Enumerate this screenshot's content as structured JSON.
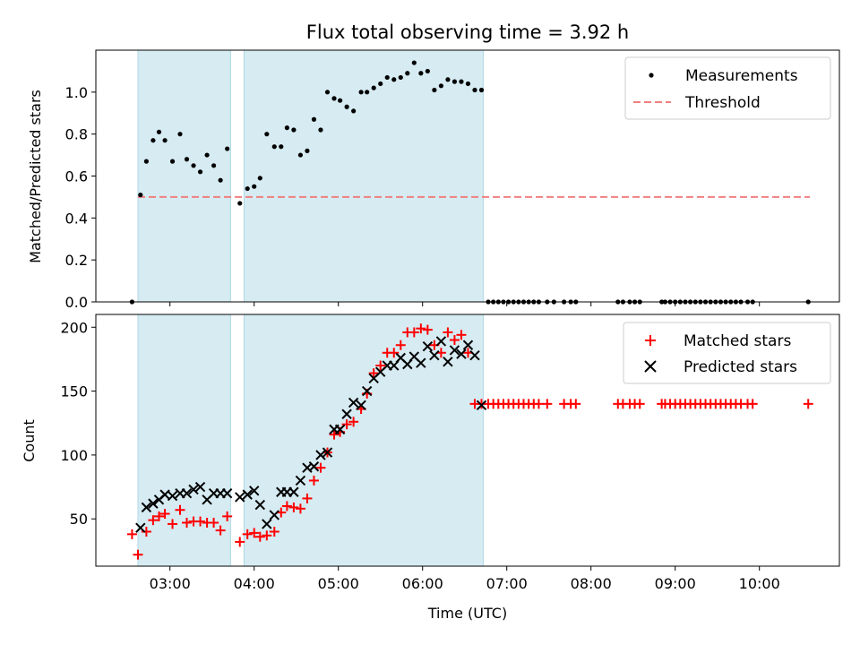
{
  "chart_data": [
    {
      "type": "scatter",
      "title": "Flux total observing time = 3.92 h",
      "xlabel": "",
      "ylabel": "Matched/Predicted stars",
      "xlim": [
        2.12,
        10.95
      ],
      "ylim": [
        0,
        1.2
      ],
      "x_tick_values": [
        3,
        4,
        5,
        6,
        7,
        8,
        9,
        10
      ],
      "y_ticks": [
        "0.0",
        "0.2",
        "0.4",
        "0.6",
        "0.8",
        "1.0"
      ],
      "y_tick_values": [
        0,
        0.2,
        0.4,
        0.6,
        0.8,
        1.0
      ],
      "shaded_spans": [
        [
          2.62,
          3.72
        ],
        [
          3.88,
          6.72
        ]
      ],
      "span_color": "#add8e6",
      "legend_position": "upper right",
      "legend": [
        {
          "label": "Measurements",
          "marker": "dot",
          "color": "#000000"
        },
        {
          "label": "Threshold",
          "marker": "dashed-line",
          "color": "#f08080"
        }
      ],
      "threshold": {
        "x": [
          2.62,
          10.6
        ],
        "y": 0.5,
        "color": "#f08080"
      },
      "series": [
        {
          "name": "Measurements",
          "color": "#000000",
          "points": [
            [
              2.55,
              0.0
            ],
            [
              2.65,
              0.51
            ],
            [
              2.72,
              0.67
            ],
            [
              2.8,
              0.77
            ],
            [
              2.87,
              0.81
            ],
            [
              2.94,
              0.77
            ],
            [
              3.03,
              0.67
            ],
            [
              3.12,
              0.8
            ],
            [
              3.2,
              0.68
            ],
            [
              3.28,
              0.65
            ],
            [
              3.36,
              0.62
            ],
            [
              3.44,
              0.7
            ],
            [
              3.52,
              0.65
            ],
            [
              3.6,
              0.58
            ],
            [
              3.68,
              0.73
            ],
            [
              3.83,
              0.47
            ],
            [
              3.92,
              0.54
            ],
            [
              4.0,
              0.55
            ],
            [
              4.07,
              0.59
            ],
            [
              4.15,
              0.8
            ],
            [
              4.24,
              0.74
            ],
            [
              4.32,
              0.74
            ],
            [
              4.39,
              0.83
            ],
            [
              4.47,
              0.82
            ],
            [
              4.55,
              0.7
            ],
            [
              4.63,
              0.72
            ],
            [
              4.71,
              0.87
            ],
            [
              4.79,
              0.82
            ],
            [
              4.87,
              1.0
            ],
            [
              4.95,
              0.97
            ],
            [
              5.02,
              0.96
            ],
            [
              5.1,
              0.93
            ],
            [
              5.18,
              0.91
            ],
            [
              5.27,
              1.0
            ],
            [
              5.34,
              1.0
            ],
            [
              5.42,
              1.02
            ],
            [
              5.5,
              1.04
            ],
            [
              5.58,
              1.07
            ],
            [
              5.66,
              1.06
            ],
            [
              5.74,
              1.07
            ],
            [
              5.82,
              1.09
            ],
            [
              5.9,
              1.14
            ],
            [
              5.98,
              1.09
            ],
            [
              6.06,
              1.1
            ],
            [
              6.14,
              1.01
            ],
            [
              6.22,
              1.03
            ],
            [
              6.3,
              1.06
            ],
            [
              6.38,
              1.05
            ],
            [
              6.46,
              1.05
            ],
            [
              6.54,
              1.04
            ],
            [
              6.62,
              1.01
            ],
            [
              6.7,
              1.01
            ],
            [
              6.78,
              0.0
            ],
            [
              6.84,
              0.0
            ],
            [
              6.9,
              0.0
            ],
            [
              6.96,
              0.0
            ],
            [
              7.02,
              0.0
            ],
            [
              7.08,
              0.0
            ],
            [
              7.14,
              0.0
            ],
            [
              7.2,
              0.0
            ],
            [
              7.26,
              0.0
            ],
            [
              7.32,
              0.0
            ],
            [
              7.38,
              0.0
            ],
            [
              7.48,
              0.0
            ],
            [
              7.56,
              0.0
            ],
            [
              7.68,
              0.0
            ],
            [
              7.76,
              0.0
            ],
            [
              7.82,
              0.0
            ],
            [
              8.32,
              0.0
            ],
            [
              8.38,
              0.0
            ],
            [
              8.46,
              0.0
            ],
            [
              8.52,
              0.0
            ],
            [
              8.58,
              0.0
            ],
            [
              8.84,
              0.0
            ],
            [
              8.88,
              0.0
            ],
            [
              8.94,
              0.0
            ],
            [
              9.0,
              0.0
            ],
            [
              9.06,
              0.0
            ],
            [
              9.12,
              0.0
            ],
            [
              9.18,
              0.0
            ],
            [
              9.24,
              0.0
            ],
            [
              9.3,
              0.0
            ],
            [
              9.36,
              0.0
            ],
            [
              9.42,
              0.0
            ],
            [
              9.48,
              0.0
            ],
            [
              9.54,
              0.0
            ],
            [
              9.6,
              0.0
            ],
            [
              9.66,
              0.0
            ],
            [
              9.72,
              0.0
            ],
            [
              9.78,
              0.0
            ],
            [
              9.86,
              0.0
            ],
            [
              9.92,
              0.0
            ],
            [
              10.58,
              0.0
            ]
          ]
        }
      ]
    },
    {
      "type": "scatter",
      "title": "",
      "xlabel": "Time (UTC)",
      "ylabel": "Count",
      "xlim": [
        2.12,
        10.95
      ],
      "ylim": [
        13,
        210
      ],
      "x_ticks": [
        "03:00",
        "04:00",
        "05:00",
        "06:00",
        "07:00",
        "08:00",
        "09:00",
        "10:00"
      ],
      "x_tick_values": [
        3,
        4,
        5,
        6,
        7,
        8,
        9,
        10
      ],
      "y_ticks": [
        "50",
        "100",
        "150",
        "200"
      ],
      "y_tick_values": [
        50,
        100,
        150,
        200
      ],
      "shaded_spans": [
        [
          2.62,
          3.72
        ],
        [
          3.88,
          6.72
        ]
      ],
      "span_color": "#add8e6",
      "legend_position": "upper right",
      "legend": [
        {
          "label": "Matched stars",
          "marker": "plus",
          "color": "#ff0000"
        },
        {
          "label": "Predicted stars",
          "marker": "x",
          "color": "#000000"
        }
      ],
      "series": [
        {
          "name": "Matched stars",
          "color": "#ff0000",
          "marker": "plus",
          "points": [
            [
              2.55,
              38
            ],
            [
              2.62,
              22
            ],
            [
              2.72,
              40
            ],
            [
              2.8,
              49
            ],
            [
              2.87,
              52
            ],
            [
              2.94,
              54
            ],
            [
              3.03,
              46
            ],
            [
              3.12,
              57
            ],
            [
              3.2,
              47
            ],
            [
              3.28,
              48
            ],
            [
              3.36,
              48
            ],
            [
              3.44,
              47
            ],
            [
              3.52,
              47
            ],
            [
              3.6,
              41
            ],
            [
              3.68,
              52
            ],
            [
              3.83,
              32
            ],
            [
              3.92,
              38
            ],
            [
              4.0,
              39
            ],
            [
              4.07,
              36
            ],
            [
              4.15,
              37
            ],
            [
              4.24,
              40
            ],
            [
              4.32,
              55
            ],
            [
              4.39,
              60
            ],
            [
              4.47,
              59
            ],
            [
              4.55,
              58
            ],
            [
              4.63,
              66
            ],
            [
              4.71,
              80
            ],
            [
              4.79,
              90
            ],
            [
              4.87,
              102
            ],
            [
              4.95,
              116
            ],
            [
              5.02,
              118
            ],
            [
              5.1,
              124
            ],
            [
              5.18,
              126
            ],
            [
              5.27,
              136
            ],
            [
              5.34,
              148
            ],
            [
              5.42,
              164
            ],
            [
              5.5,
              170
            ],
            [
              5.58,
              180
            ],
            [
              5.66,
              180
            ],
            [
              5.74,
              186
            ],
            [
              5.82,
              196
            ],
            [
              5.9,
              196
            ],
            [
              5.98,
              199
            ],
            [
              6.06,
              198
            ],
            [
              6.14,
              186
            ],
            [
              6.22,
              180
            ],
            [
              6.3,
              196
            ],
            [
              6.38,
              190
            ],
            [
              6.46,
              194
            ],
            [
              6.54,
              180
            ],
            [
              6.62,
              140
            ],
            [
              6.7,
              140
            ],
            [
              6.78,
              140
            ],
            [
              6.84,
              140
            ],
            [
              6.9,
              140
            ],
            [
              6.96,
              140
            ],
            [
              7.02,
              140
            ],
            [
              7.08,
              140
            ],
            [
              7.14,
              140
            ],
            [
              7.2,
              140
            ],
            [
              7.26,
              140
            ],
            [
              7.32,
              140
            ],
            [
              7.38,
              140
            ],
            [
              7.48,
              140
            ],
            [
              7.68,
              140
            ],
            [
              7.76,
              140
            ],
            [
              7.82,
              140
            ],
            [
              8.32,
              140
            ],
            [
              8.38,
              140
            ],
            [
              8.46,
              140
            ],
            [
              8.52,
              140
            ],
            [
              8.58,
              140
            ],
            [
              8.84,
              140
            ],
            [
              8.88,
              140
            ],
            [
              8.94,
              140
            ],
            [
              9.0,
              140
            ],
            [
              9.06,
              140
            ],
            [
              9.12,
              140
            ],
            [
              9.18,
              140
            ],
            [
              9.24,
              140
            ],
            [
              9.3,
              140
            ],
            [
              9.36,
              140
            ],
            [
              9.42,
              140
            ],
            [
              9.48,
              140
            ],
            [
              9.54,
              140
            ],
            [
              9.6,
              140
            ],
            [
              9.66,
              140
            ],
            [
              9.72,
              140
            ],
            [
              9.78,
              140
            ],
            [
              9.86,
              140
            ],
            [
              9.92,
              140
            ],
            [
              10.58,
              140
            ]
          ]
        },
        {
          "name": "Predicted stars",
          "color": "#000000",
          "marker": "x",
          "points": [
            [
              2.65,
              43
            ],
            [
              2.72,
              59
            ],
            [
              2.8,
              62
            ],
            [
              2.87,
              65
            ],
            [
              2.94,
              69
            ],
            [
              3.03,
              68
            ],
            [
              3.12,
              70
            ],
            [
              3.2,
              70
            ],
            [
              3.28,
              73
            ],
            [
              3.36,
              75
            ],
            [
              3.44,
              65
            ],
            [
              3.52,
              70
            ],
            [
              3.6,
              70
            ],
            [
              3.68,
              70
            ],
            [
              3.83,
              67
            ],
            [
              3.92,
              69
            ],
            [
              4.0,
              72
            ],
            [
              4.07,
              61
            ],
            [
              4.15,
              46
            ],
            [
              4.24,
              53
            ],
            [
              4.32,
              71
            ],
            [
              4.39,
              71
            ],
            [
              4.47,
              71
            ],
            [
              4.55,
              80
            ],
            [
              4.63,
              90
            ],
            [
              4.71,
              91
            ],
            [
              4.79,
              100
            ],
            [
              4.87,
              102
            ],
            [
              4.95,
              120
            ],
            [
              5.02,
              120
            ],
            [
              5.1,
              132
            ],
            [
              5.18,
              141
            ],
            [
              5.27,
              139
            ],
            [
              5.34,
              150
            ],
            [
              5.42,
              160
            ],
            [
              5.5,
              165
            ],
            [
              5.58,
              170
            ],
            [
              5.66,
              170
            ],
            [
              5.74,
              176
            ],
            [
              5.82,
              171
            ],
            [
              5.9,
              177
            ],
            [
              5.98,
              172
            ],
            [
              6.06,
              185
            ],
            [
              6.14,
              178
            ],
            [
              6.22,
              189
            ],
            [
              6.3,
              173
            ],
            [
              6.38,
              182
            ],
            [
              6.46,
              179
            ],
            [
              6.54,
              186
            ],
            [
              6.62,
              178
            ],
            [
              6.7,
              139
            ]
          ]
        }
      ]
    }
  ]
}
